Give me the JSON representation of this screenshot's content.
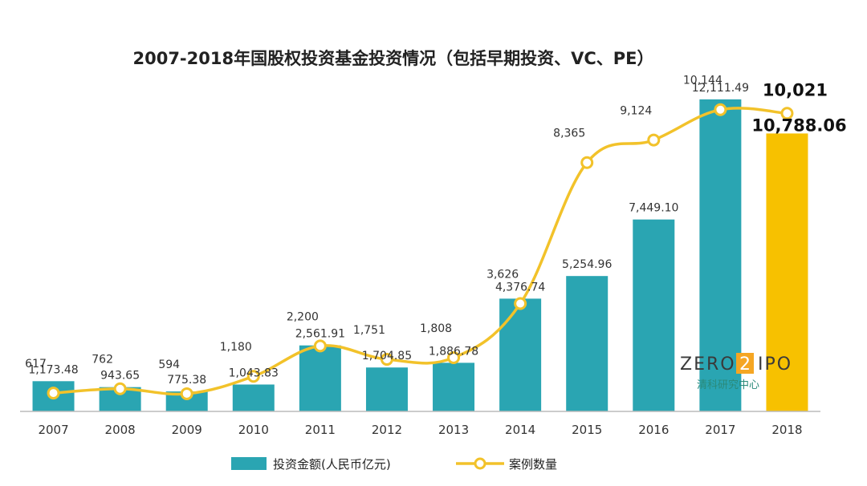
{
  "chart_data": {
    "type": "bar",
    "title": "2007-2018年国股权投资基金投资情况（包括早期投资、VC、PE）",
    "categories": [
      "2007",
      "2008",
      "2009",
      "2010",
      "2011",
      "2012",
      "2013",
      "2014",
      "2015",
      "2016",
      "2017",
      "2018"
    ],
    "series": [
      {
        "name": "投资金额(人民币亿元)",
        "type": "bar",
        "values": [
          1173.48,
          943.65,
          775.38,
          1043.83,
          2561.91,
          1704.85,
          1886.78,
          4376.74,
          5254.96,
          7449.1,
          12111.49,
          10788.06
        ],
        "labels": [
          "1,173.48",
          "943.65",
          "775.38",
          "1,043.83",
          "2,561.91",
          "1,704.85",
          "1,886.78",
          "4,376.74",
          "5,254.96",
          "7,449.10",
          "12,111.49",
          "10,788.06"
        ]
      },
      {
        "name": "案例数量",
        "type": "line",
        "values": [
          617,
          762,
          594,
          1180,
          2200,
          1751,
          1808,
          3626,
          8365,
          9124,
          10144,
          10021
        ],
        "labels": [
          "617",
          "762",
          "594",
          "1,180",
          "2,200",
          "1,751",
          "1,808",
          "3,626",
          "8,365",
          "9,124",
          "10,144",
          "10,021"
        ]
      }
    ],
    "bar_ylim": [
      0,
      12700
    ],
    "line_ylim": [
      0,
      11000
    ],
    "highlight_index": 11,
    "legend_position": "bottom",
    "grid": false
  },
  "colors": {
    "bar": "#2aa5b2",
    "bar_highlight": "#f7c100",
    "line": "#f2c22a",
    "axis": "#bbbbbb"
  },
  "watermark": {
    "brand_left": "ZERO",
    "brand_mid": "2",
    "brand_right": "IPO",
    "subtitle": "清科研究中心"
  }
}
